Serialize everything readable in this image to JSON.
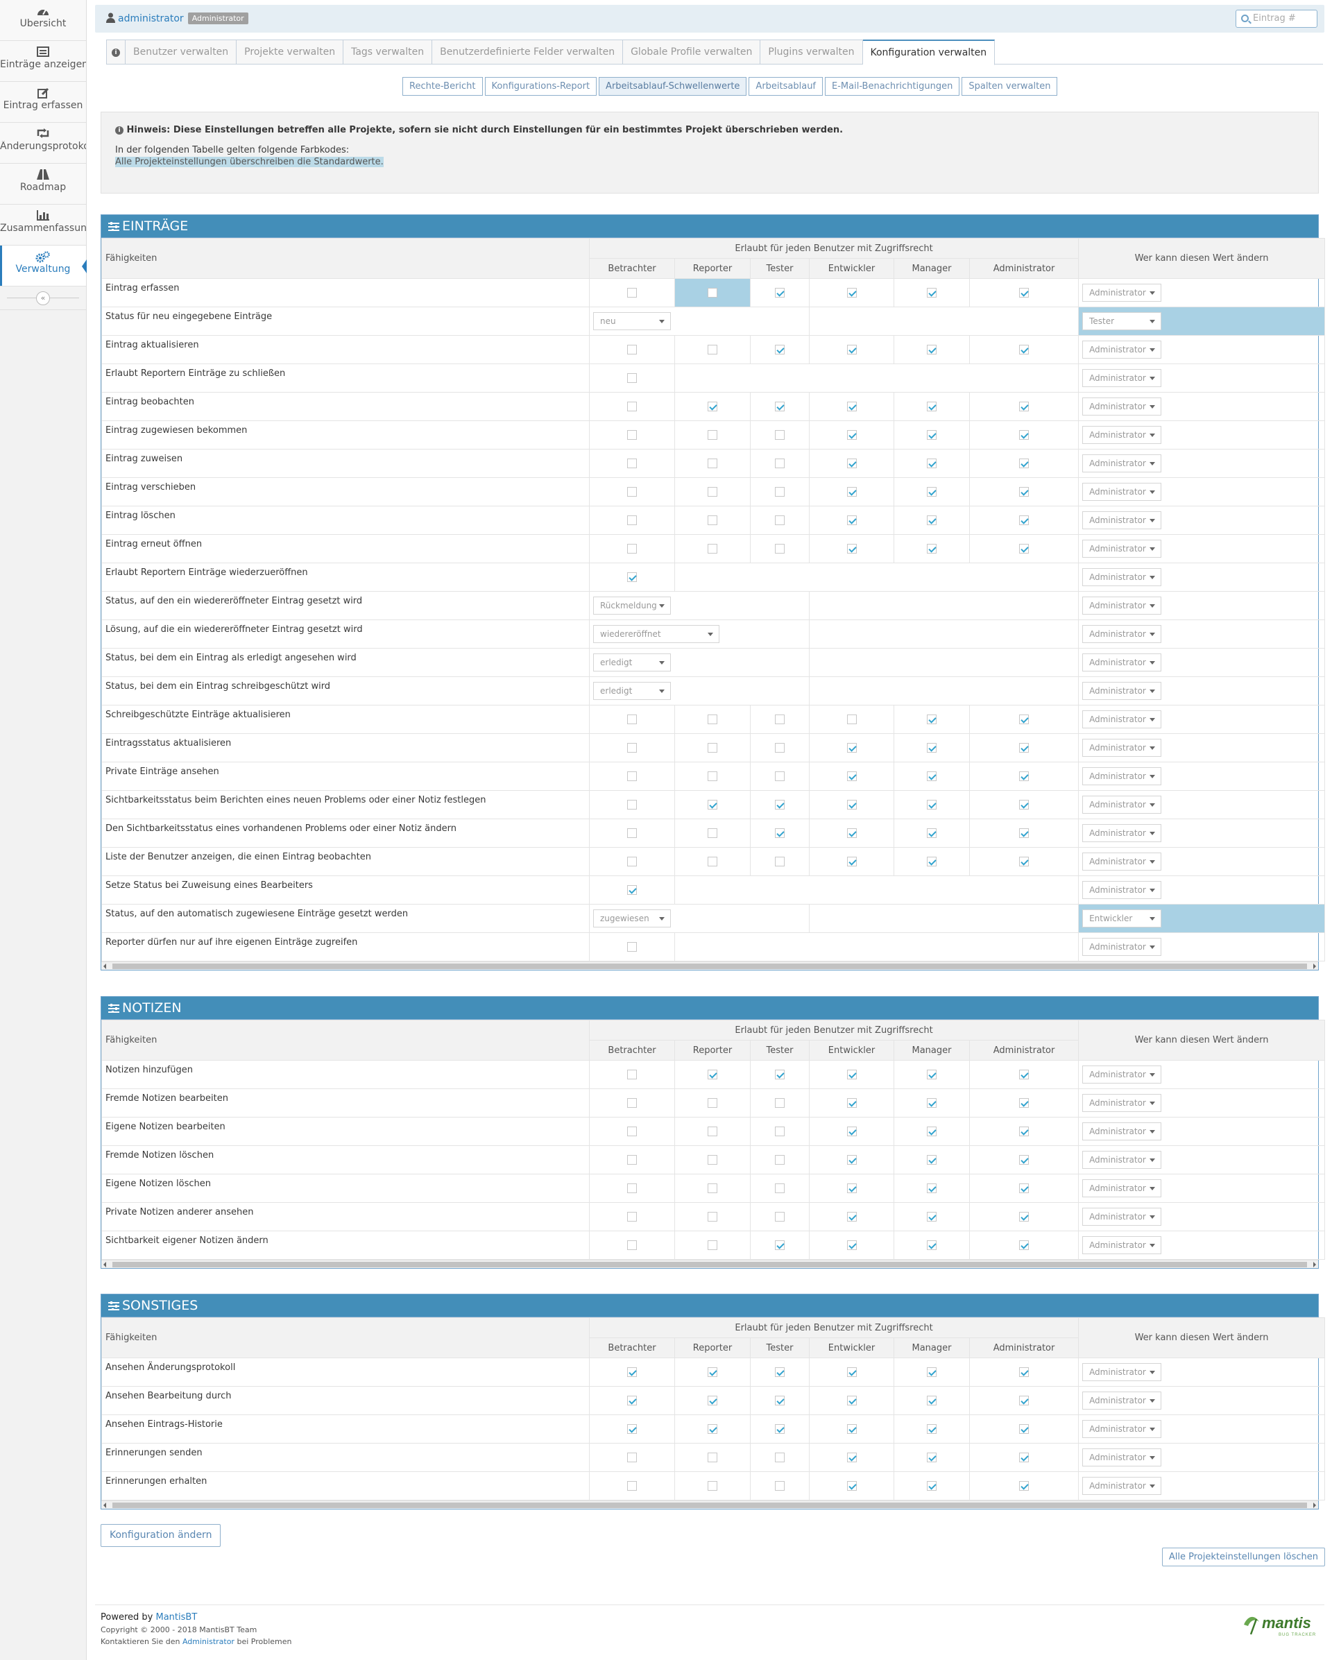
{
  "sidebar": {
    "items": [
      {
        "label": "Übersicht",
        "icon": "dashboard-icon"
      },
      {
        "label": "Einträge anzeigen",
        "icon": "list-icon"
      },
      {
        "label": "Eintrag erfassen",
        "icon": "edit-icon"
      },
      {
        "label": "Änderungsprotokoll",
        "icon": "retweet-icon"
      },
      {
        "label": "Roadmap",
        "icon": "road-icon"
      },
      {
        "label": "Zusammenfassung",
        "icon": "bar-chart-icon"
      },
      {
        "label": "Verwaltung",
        "icon": "gears-icon"
      }
    ],
    "active_index": 6
  },
  "header": {
    "username": "administrator",
    "role_badge": "Administrator",
    "search_placeholder": "Eintrag #"
  },
  "tabs": [
    "Benutzer verwalten",
    "Projekte verwalten",
    "Tags verwalten",
    "Benutzerdefinierte Felder verwalten",
    "Globale Profile verwalten",
    "Plugins verwalten",
    "Konfiguration verwalten"
  ],
  "subtabs": [
    "Rechte-Bericht",
    "Konfigurations-Report",
    "Arbeitsablauf-Schwellenwerte",
    "Arbeitsablauf",
    "E-Mail-Benachrichtigungen",
    "Spalten verwalten"
  ],
  "note": {
    "line1": "Hinweis: Diese Einstellungen betreffen alle Projekte, sofern sie nicht durch Einstellungen für ein bestimmtes Projekt überschrieben werden.",
    "line2": "In der folgenden Tabelle gelten folgende Farbkodes:",
    "line3": "Alle Projekteinstellungen überschreiben die Standardwerte."
  },
  "table_headers": {
    "capability": "Fähigkeiten",
    "group": "Erlaubt für jeden Benutzer mit Zugriffsrecht",
    "who": "Wer kann diesen Wert ändern",
    "roles": [
      "Betrachter",
      "Reporter",
      "Tester",
      "Entwickler",
      "Manager",
      "Administrator"
    ]
  },
  "sections": [
    {
      "title": "EINTRÄGE",
      "rows": [
        {
          "label": "Eintrag erfassen",
          "type": "checks",
          "checks": [
            0,
            0,
            1,
            1,
            1,
            1
          ],
          "hl": [
            1
          ],
          "who": "Administrator"
        },
        {
          "label": "Status für neu eingegebene Einträge",
          "type": "select",
          "value": "neu",
          "who": "Tester",
          "whoHl": true
        },
        {
          "label": "Eintrag aktualisieren",
          "type": "checks",
          "checks": [
            0,
            0,
            1,
            1,
            1,
            1
          ],
          "who": "Administrator"
        },
        {
          "label": "Erlaubt Reportern Einträge zu schließen",
          "type": "single",
          "value": 0,
          "who": "Administrator"
        },
        {
          "label": "Eintrag beobachten",
          "type": "checks",
          "checks": [
            0,
            1,
            1,
            1,
            1,
            1
          ],
          "who": "Administrator"
        },
        {
          "label": "Eintrag zugewiesen bekommen",
          "type": "checks",
          "checks": [
            0,
            0,
            0,
            1,
            1,
            1
          ],
          "who": "Administrator"
        },
        {
          "label": "Eintrag zuweisen",
          "type": "checks",
          "checks": [
            0,
            0,
            0,
            1,
            1,
            1
          ],
          "who": "Administrator"
        },
        {
          "label": "Eintrag verschieben",
          "type": "checks",
          "checks": [
            0,
            0,
            0,
            1,
            1,
            1
          ],
          "who": "Administrator"
        },
        {
          "label": "Eintrag löschen",
          "type": "checks",
          "checks": [
            0,
            0,
            0,
            1,
            1,
            1
          ],
          "who": "Administrator"
        },
        {
          "label": "Eintrag erneut öffnen",
          "type": "checks",
          "checks": [
            0,
            0,
            0,
            1,
            1,
            1
          ],
          "who": "Administrator"
        },
        {
          "label": "Erlaubt Reportern Einträge wiederzueröffnen",
          "type": "single",
          "value": 1,
          "who": "Administrator"
        },
        {
          "label": "Status, auf den ein wiedereröffneter Eintrag gesetzt wird",
          "type": "select",
          "value": "Rückmeldung",
          "who": "Administrator"
        },
        {
          "label": "Lösung, auf die ein wiedereröffneter Eintrag gesetzt wird",
          "type": "select",
          "value": "wiedereröffnet",
          "wide": true,
          "who": "Administrator"
        },
        {
          "label": "Status, bei dem ein Eintrag als erledigt angesehen wird",
          "type": "select",
          "value": "erledigt",
          "who": "Administrator"
        },
        {
          "label": "Status, bei dem ein Eintrag schreibgeschützt wird",
          "type": "select",
          "value": "erledigt",
          "who": "Administrator"
        },
        {
          "label": "Schreibgeschützte Einträge aktualisieren",
          "type": "checks",
          "checks": [
            0,
            0,
            0,
            0,
            1,
            1
          ],
          "who": "Administrator"
        },
        {
          "label": "Eintragsstatus aktualisieren",
          "type": "checks",
          "checks": [
            0,
            0,
            0,
            1,
            1,
            1
          ],
          "who": "Administrator"
        },
        {
          "label": "Private Einträge ansehen",
          "type": "checks",
          "checks": [
            0,
            0,
            0,
            1,
            1,
            1
          ],
          "who": "Administrator"
        },
        {
          "label": "Sichtbarkeitsstatus beim Berichten eines neuen Problems oder einer Notiz festlegen",
          "type": "checks",
          "checks": [
            0,
            1,
            1,
            1,
            1,
            1
          ],
          "who": "Administrator"
        },
        {
          "label": "Den Sichtbarkeitsstatus eines vorhandenen Problems oder einer Notiz ändern",
          "type": "checks",
          "checks": [
            0,
            0,
            1,
            1,
            1,
            1
          ],
          "who": "Administrator"
        },
        {
          "label": "Liste der Benutzer anzeigen, die einen Eintrag beobachten",
          "type": "checks",
          "checks": [
            0,
            0,
            0,
            1,
            1,
            1
          ],
          "who": "Administrator"
        },
        {
          "label": "Setze Status bei Zuweisung eines Bearbeiters",
          "type": "single",
          "value": 1,
          "who": "Administrator"
        },
        {
          "label": "Status, auf den automatisch zugewiesene Einträge gesetzt werden",
          "type": "select",
          "value": "zugewiesen",
          "who": "Entwickler",
          "whoHl": true
        },
        {
          "label": "Reporter dürfen nur auf ihre eigenen Einträge zugreifen",
          "type": "single",
          "value": 0,
          "who": "Administrator"
        }
      ]
    },
    {
      "title": "NOTIZEN",
      "rows": [
        {
          "label": "Notizen hinzufügen",
          "type": "checks",
          "checks": [
            0,
            1,
            1,
            1,
            1,
            1
          ],
          "who": "Administrator"
        },
        {
          "label": "Fremde Notizen bearbeiten",
          "type": "checks",
          "checks": [
            0,
            0,
            0,
            1,
            1,
            1
          ],
          "who": "Administrator"
        },
        {
          "label": "Eigene Notizen bearbeiten",
          "type": "checks",
          "checks": [
            0,
            0,
            0,
            1,
            1,
            1
          ],
          "who": "Administrator"
        },
        {
          "label": "Fremde Notizen löschen",
          "type": "checks",
          "checks": [
            0,
            0,
            0,
            1,
            1,
            1
          ],
          "who": "Administrator"
        },
        {
          "label": "Eigene Notizen löschen",
          "type": "checks",
          "checks": [
            0,
            0,
            0,
            1,
            1,
            1
          ],
          "who": "Administrator"
        },
        {
          "label": "Private Notizen anderer ansehen",
          "type": "checks",
          "checks": [
            0,
            0,
            0,
            1,
            1,
            1
          ],
          "who": "Administrator"
        },
        {
          "label": "Sichtbarkeit eigener Notizen ändern",
          "type": "checks",
          "checks": [
            0,
            0,
            1,
            1,
            1,
            1
          ],
          "who": "Administrator"
        }
      ]
    },
    {
      "title": "SONSTIGES",
      "rows": [
        {
          "label": "Ansehen Änderungsprotokoll",
          "type": "checks",
          "checks": [
            1,
            1,
            1,
            1,
            1,
            1
          ],
          "who": "Administrator"
        },
        {
          "label": "Ansehen Bearbeitung durch",
          "type": "checks",
          "checks": [
            1,
            1,
            1,
            1,
            1,
            1
          ],
          "who": "Administrator"
        },
        {
          "label": "Ansehen Eintrags-Historie",
          "type": "checks",
          "checks": [
            1,
            1,
            1,
            1,
            1,
            1
          ],
          "who": "Administrator"
        },
        {
          "label": "Erinnerungen senden",
          "type": "checks",
          "checks": [
            0,
            0,
            0,
            1,
            1,
            1
          ],
          "who": "Administrator"
        },
        {
          "label": "Erinnerungen erhalten",
          "type": "checks",
          "checks": [
            0,
            0,
            0,
            1,
            1,
            1
          ],
          "who": "Administrator"
        }
      ]
    }
  ],
  "buttons": {
    "submit": "Konfiguration ändern",
    "delete_all": "Alle Projekteinstellungen löschen"
  },
  "footer": {
    "powered_by": "Powered by",
    "product": "MantisBT",
    "copyright": "Copyright © 2000 - 2018 MantisBT Team",
    "contact_pre": "Kontaktieren Sie den",
    "contact_link": "Administrator",
    "contact_post": "bei Problemen",
    "logo_text": "mantis",
    "logo_sub": "BUG TRACKER"
  },
  "colors": {
    "accent": "#438eb9",
    "highlight": "#a9d1e4",
    "check": "#32a3ce"
  }
}
